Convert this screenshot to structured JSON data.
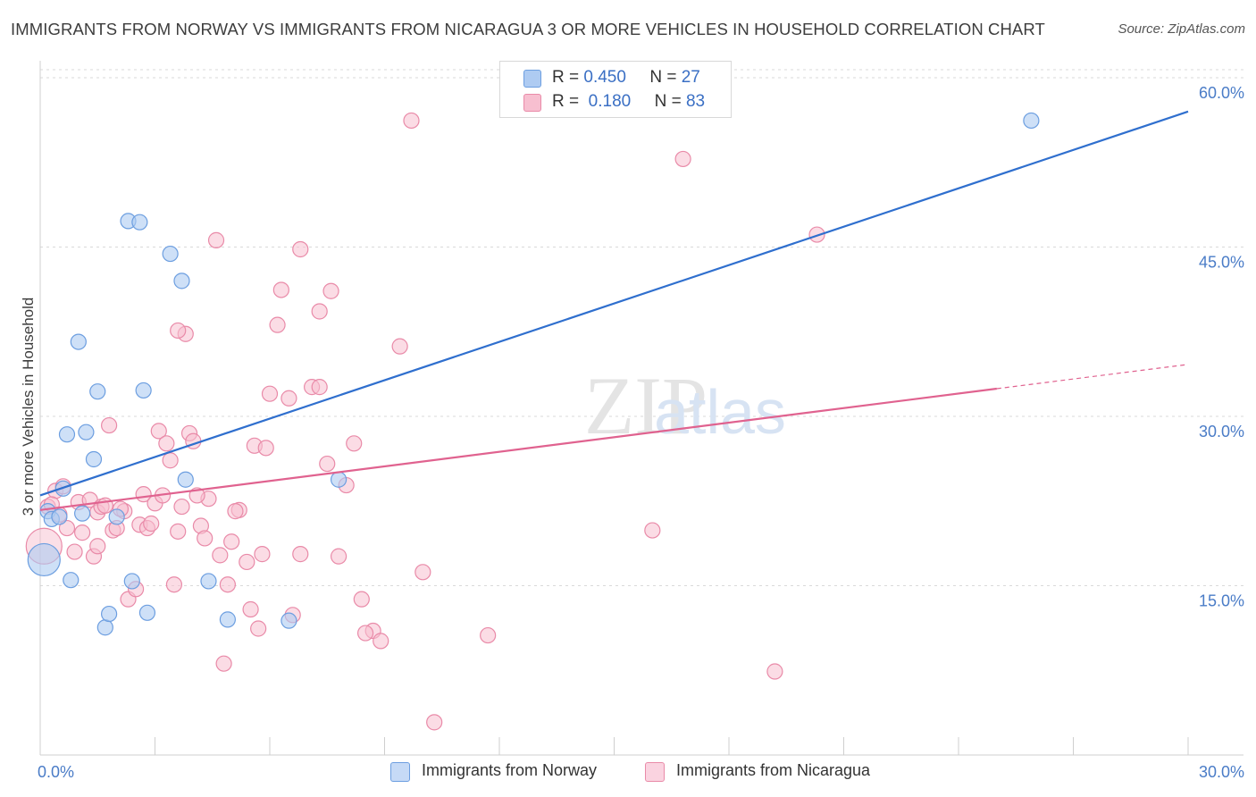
{
  "title": "IMMIGRANTS FROM NORWAY VS IMMIGRANTS FROM NICARAGUA 3 OR MORE VEHICLES IN HOUSEHOLD CORRELATION CHART",
  "source": "Source: ZipAtlas.com",
  "watermark": {
    "zip": "ZIP",
    "atlas": "atlas"
  },
  "legend": {
    "norway": {
      "r_label": "R = ",
      "r_value": "0.450",
      "n_label": "N = ",
      "n_value": "27"
    },
    "nicaragua": {
      "r_label": "R = ",
      "r_value": "0.180",
      "n_label": "N = ",
      "n_value": "83"
    }
  },
  "bottom_legend": {
    "norway": "Immigrants from Norway",
    "nicaragua": "Immigrants from Nicaragua"
  },
  "colors": {
    "norway_fill": "#aecbf2",
    "norway_stroke": "#6c9ee0",
    "norway_line": "#2f6fce",
    "nicaragua_fill": "#f7bfd0",
    "nicaragua_stroke": "#e98aa8",
    "nicaragua_line": "#e0628f"
  },
  "chart_data": {
    "type": "scatter",
    "title": "IMMIGRANTS FROM NORWAY VS IMMIGRANTS FROM NICARAGUA 3 OR MORE VEHICLES IN HOUSEHOLD CORRELATION CHART",
    "xlabel": "",
    "ylabel": "3 or more Vehicles in Household",
    "xlim": [
      0,
      30
    ],
    "ylim": [
      0,
      61.5
    ],
    "x_tick_labels": [
      "0.0%",
      "30.0%"
    ],
    "y_ticks": [
      15,
      30,
      45,
      60
    ],
    "y_tick_labels": [
      "15.0%",
      "30.0%",
      "45.0%",
      "60.0%"
    ],
    "series": [
      {
        "name": "Immigrants from Norway",
        "points": [
          [
            0.2,
            21.6
          ],
          [
            0.3,
            20.9
          ],
          [
            0.5,
            21.1
          ],
          [
            0.6,
            23.6
          ],
          [
            0.7,
            28.4
          ],
          [
            0.8,
            15.5
          ],
          [
            1.0,
            36.6
          ],
          [
            1.1,
            21.4
          ],
          [
            1.2,
            28.6
          ],
          [
            1.4,
            26.2
          ],
          [
            1.5,
            32.2
          ],
          [
            1.7,
            11.3
          ],
          [
            1.8,
            12.5
          ],
          [
            2.0,
            21.1
          ],
          [
            2.3,
            47.3
          ],
          [
            2.4,
            15.4
          ],
          [
            2.6,
            47.2
          ],
          [
            2.7,
            32.3
          ],
          [
            2.8,
            12.6
          ],
          [
            3.4,
            44.4
          ],
          [
            3.7,
            42.0
          ],
          [
            3.8,
            24.4
          ],
          [
            4.4,
            15.4
          ],
          [
            4.9,
            12.0
          ],
          [
            6.5,
            11.9
          ],
          [
            7.8,
            24.4
          ],
          [
            25.9,
            56.2
          ]
        ],
        "big_points": [
          [
            0.1,
            17.3
          ]
        ],
        "trend": {
          "x0": 0.0,
          "y0": 23.0,
          "x1": 30.0,
          "y1": 57.0
        }
      },
      {
        "name": "Immigrants from Nicaragua",
        "points": [
          [
            0.2,
            22.0
          ],
          [
            0.4,
            23.4
          ],
          [
            0.5,
            21.3
          ],
          [
            0.6,
            23.8
          ],
          [
            0.7,
            20.1
          ],
          [
            0.9,
            18.0
          ],
          [
            1.0,
            22.4
          ],
          [
            1.1,
            19.7
          ],
          [
            1.3,
            22.6
          ],
          [
            1.4,
            17.6
          ],
          [
            1.5,
            21.5
          ],
          [
            1.6,
            22.0
          ],
          [
            1.8,
            29.2
          ],
          [
            1.9,
            19.9
          ],
          [
            2.0,
            20.1
          ],
          [
            2.2,
            21.6
          ],
          [
            2.3,
            13.8
          ],
          [
            2.5,
            14.7
          ],
          [
            2.6,
            20.4
          ],
          [
            2.7,
            23.1
          ],
          [
            2.8,
            20.1
          ],
          [
            3.0,
            22.3
          ],
          [
            3.1,
            28.7
          ],
          [
            3.2,
            23.0
          ],
          [
            3.3,
            27.6
          ],
          [
            3.4,
            26.1
          ],
          [
            3.5,
            15.1
          ],
          [
            3.6,
            19.8
          ],
          [
            3.7,
            22.0
          ],
          [
            3.8,
            37.3
          ],
          [
            3.9,
            28.5
          ],
          [
            4.0,
            27.8
          ],
          [
            4.2,
            20.3
          ],
          [
            4.4,
            22.7
          ],
          [
            4.6,
            45.6
          ],
          [
            4.7,
            17.7
          ],
          [
            4.8,
            8.1
          ],
          [
            4.9,
            15.1
          ],
          [
            5.0,
            18.9
          ],
          [
            5.2,
            21.7
          ],
          [
            5.4,
            17.1
          ],
          [
            5.5,
            12.9
          ],
          [
            5.6,
            27.4
          ],
          [
            5.8,
            17.8
          ],
          [
            6.0,
            32.0
          ],
          [
            6.2,
            38.1
          ],
          [
            6.3,
            41.2
          ],
          [
            6.5,
            31.6
          ],
          [
            6.6,
            12.4
          ],
          [
            6.8,
            44.8
          ],
          [
            7.1,
            32.6
          ],
          [
            7.3,
            39.3
          ],
          [
            7.5,
            25.8
          ],
          [
            7.6,
            41.1
          ],
          [
            7.8,
            17.6
          ],
          [
            8.0,
            23.9
          ],
          [
            8.2,
            27.6
          ],
          [
            8.4,
            13.8
          ],
          [
            8.7,
            11.0
          ],
          [
            8.9,
            10.1
          ],
          [
            9.4,
            36.2
          ],
          [
            9.7,
            56.2
          ],
          [
            10.0,
            16.2
          ],
          [
            10.3,
            2.9
          ],
          [
            11.7,
            10.6
          ],
          [
            16.0,
            19.9
          ],
          [
            16.8,
            52.8
          ],
          [
            19.2,
            7.4
          ],
          [
            20.3,
            46.1
          ],
          [
            1.7,
            22.1
          ],
          [
            2.9,
            20.5
          ],
          [
            3.6,
            37.6
          ],
          [
            4.1,
            23.0
          ],
          [
            5.1,
            21.6
          ],
          [
            5.7,
            11.2
          ],
          [
            5.9,
            27.2
          ],
          [
            6.8,
            17.8
          ],
          [
            7.3,
            32.6
          ],
          [
            8.5,
            10.8
          ],
          [
            0.3,
            22.2
          ],
          [
            1.5,
            18.5
          ],
          [
            2.1,
            21.8
          ],
          [
            4.3,
            19.2
          ]
        ],
        "big_points": [
          [
            0.1,
            18.5
          ]
        ],
        "trend": {
          "x0": 0.0,
          "y0": 21.7,
          "x1": 30.0,
          "y1": 34.6,
          "solid_until": 25.0
        }
      }
    ]
  }
}
